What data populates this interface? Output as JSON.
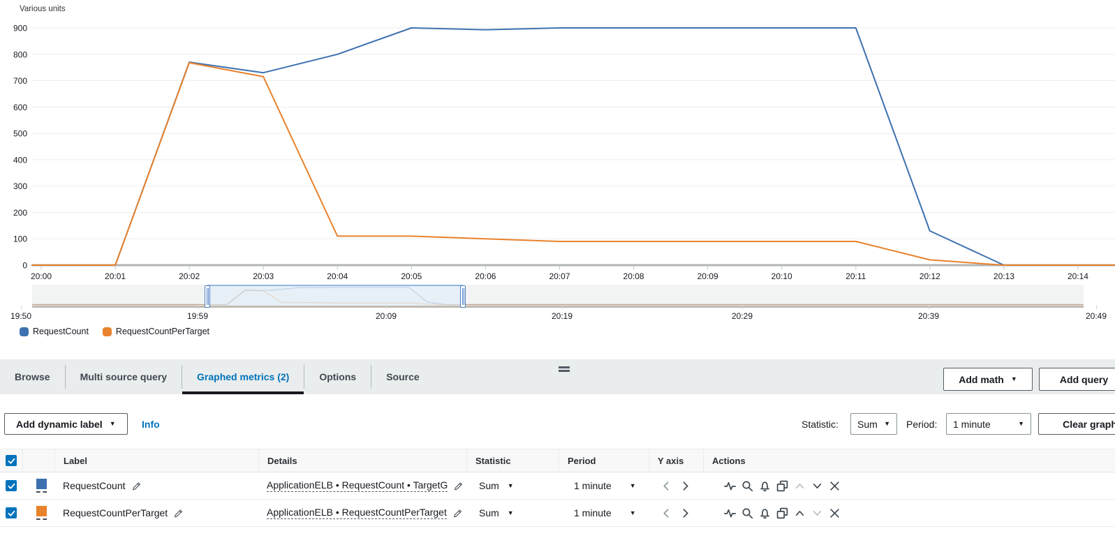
{
  "chart": {
    "unit_label": "Various units"
  },
  "chart_data": {
    "type": "line",
    "x": [
      "20:00",
      "20:01",
      "20:02",
      "20:03",
      "20:04",
      "20:05",
      "20:06",
      "20:07",
      "20:08",
      "20:09",
      "20:10",
      "20:11",
      "20:12",
      "20:13",
      "20:14"
    ],
    "series": [
      {
        "name": "RequestCount",
        "color": "#3d71b0",
        "values": [
          0,
          0,
          770,
          730,
          800,
          900,
          893,
          900,
          900,
          900,
          900,
          900,
          130,
          0,
          0
        ]
      },
      {
        "name": "RequestCountPerTarget",
        "color": "#e8822c",
        "values": [
          0,
          0,
          768,
          715,
          110,
          110,
          100,
          90,
          90,
          90,
          90,
          90,
          20,
          0,
          0
        ]
      }
    ],
    "title": "",
    "xlabel": "",
    "ylabel": "Various units",
    "ylim": [
      0,
      900
    ],
    "yticks": [
      0,
      100,
      200,
      300,
      400,
      500,
      600,
      700,
      800,
      900
    ],
    "grid": true,
    "legend_position": "bottom-left",
    "timeline": {
      "labels": [
        "19:50",
        "19:59",
        "20:09",
        "20:19",
        "20:29",
        "20:39",
        "20:49"
      ],
      "selection_range": [
        "20:00",
        "20:14"
      ]
    }
  },
  "legend": {
    "items": [
      {
        "label": "RequestCount",
        "color": "#3d71b0"
      },
      {
        "label": "RequestCountPerTarget",
        "color": "#e8822c"
      }
    ]
  },
  "tabs": {
    "items": [
      "Browse",
      "Multi source query",
      "Graphed metrics (2)",
      "Options",
      "Source"
    ],
    "active": "Graphed metrics (2)"
  },
  "actions_bar": {
    "add_math": "Add math",
    "add_query": "Add query"
  },
  "toolbar": {
    "add_dynamic_label": "Add dynamic label",
    "info_link": "Info",
    "statistic_label": "Statistic:",
    "statistic_value": "Sum",
    "period_label": "Period:",
    "period_value": "1 minute",
    "clear_graph": "Clear graph"
  },
  "metrics_table": {
    "columns": [
      "Label",
      "Details",
      "Statistic",
      "Period",
      "Y axis",
      "Actions"
    ],
    "rows": [
      {
        "checked": true,
        "color": "#3d71b0",
        "label": "RequestCount",
        "details": "ApplicationELB • RequestCount • TargetG",
        "statistic": "Sum",
        "period": "1 minute",
        "move_up_enabled": false,
        "move_down_enabled": true
      },
      {
        "checked": true,
        "color": "#e8822c",
        "label": "RequestCountPerTarget",
        "details": "ApplicationELB • RequestCountPerTarget",
        "statistic": "Sum",
        "period": "1 minute",
        "move_up_enabled": true,
        "move_down_enabled": false
      }
    ]
  },
  "icons": {
    "caret_down": "▼"
  },
  "colors": {
    "link_blue": "#0073bb",
    "active_tab": "#0073bb",
    "tab_underline": "#16191f",
    "checkbox": "#0073bb",
    "series_blue": "#3d71b0",
    "series_orange": "#e8822c"
  }
}
